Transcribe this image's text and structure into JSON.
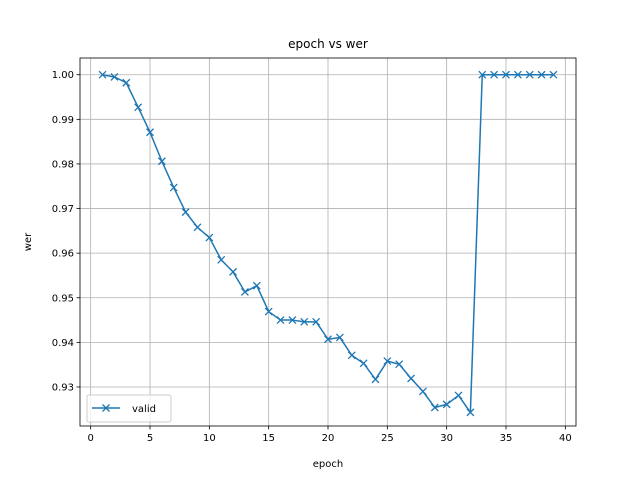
{
  "chart_data": {
    "type": "line",
    "title": "epoch vs wer",
    "xlabel": "epoch",
    "ylabel": "wer",
    "xlim": [
      -0.9,
      40.9
    ],
    "ylim": [
      0.92125,
      1.00375
    ],
    "xticks": [
      0,
      5,
      10,
      15,
      20,
      25,
      30,
      35,
      40
    ],
    "xtick_labels": [
      "0",
      "5",
      "10",
      "15",
      "20",
      "25",
      "30",
      "35",
      "40"
    ],
    "yticks": [
      0.93,
      0.94,
      0.95,
      0.96,
      0.97,
      0.98,
      0.99,
      1.0
    ],
    "ytick_labels": [
      "0.93",
      "0.94",
      "0.95",
      "0.96",
      "0.97",
      "0.98",
      "0.99",
      "1.00"
    ],
    "grid": true,
    "legend_position": "lower-left",
    "series": [
      {
        "name": "valid",
        "color": "#1f77b4",
        "marker": "x",
        "x": [
          1,
          2,
          3,
          4,
          5,
          6,
          7,
          8,
          9,
          10,
          11,
          12,
          13,
          14,
          15,
          16,
          17,
          18,
          19,
          20,
          21,
          22,
          23,
          24,
          25,
          26,
          27,
          28,
          29,
          30,
          31,
          32,
          33,
          34,
          35,
          36,
          37,
          38,
          39
        ],
        "y": [
          1.0,
          0.9995,
          0.9982,
          0.9927,
          0.9871,
          0.9806,
          0.9747,
          0.9692,
          0.9658,
          0.9635,
          0.9585,
          0.9558,
          0.9513,
          0.9527,
          0.9469,
          0.945,
          0.945,
          0.9446,
          0.9446,
          0.9407,
          0.9411,
          0.9371,
          0.9353,
          0.9317,
          0.9358,
          0.9351,
          0.9319,
          0.929,
          0.9254,
          0.9261,
          0.9281,
          0.9243,
          1.0,
          1.0,
          1.0,
          1.0,
          1.0,
          1.0,
          1.0
        ]
      }
    ]
  }
}
